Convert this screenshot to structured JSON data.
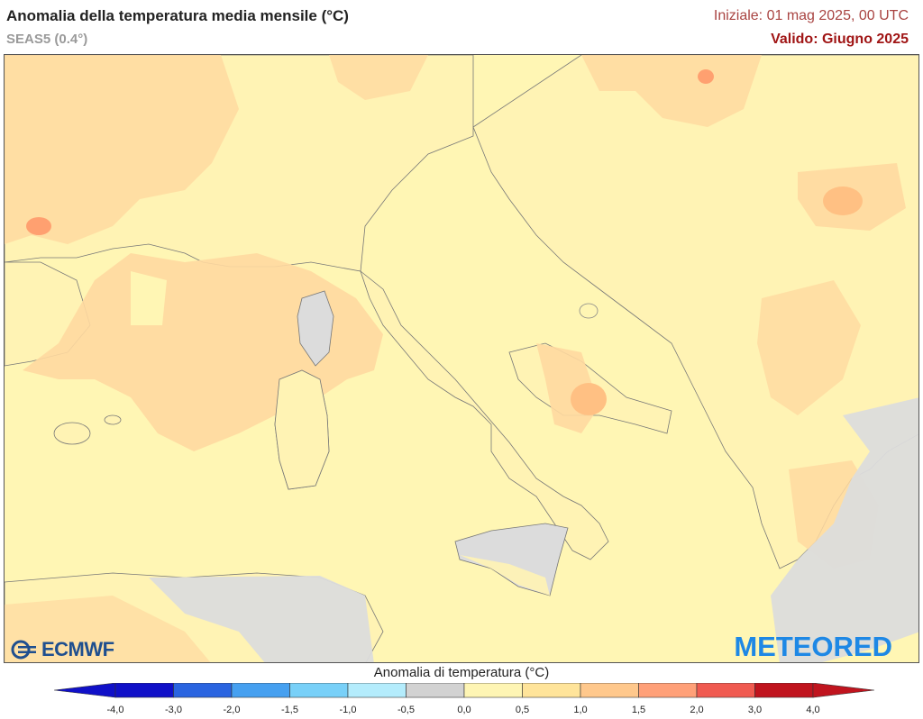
{
  "header": {
    "title": "Anomalia della temperatura media mensile (°C)",
    "model": "SEAS5 (0.4°)",
    "initial": "Iniziale: 01 mag 2025, 00 UTC",
    "valid": "Valido: Giugno 2025"
  },
  "logos": {
    "left": "ECMWF",
    "right": "METEORED"
  },
  "legend": {
    "title": "Anomalia di temperatura (°C)",
    "ticks": [
      "-4,0",
      "-3,0",
      "-2,0",
      "-1,5",
      "-1,0",
      "-0,5",
      "0,0",
      "0,5",
      "1,0",
      "1,5",
      "2,0",
      "3,0",
      "4,0"
    ],
    "colors": [
      "#1010c8",
      "#2a64e0",
      "#46a0f0",
      "#78d0f8",
      "#b4ecfc",
      "#d2d2d2",
      "#dedede",
      "#fef5b4",
      "#ffe49a",
      "#ffc88c",
      "#ffa078",
      "#f05a50",
      "#c0141e"
    ]
  },
  "colors": {
    "sea": "#fff6b4",
    "land_low": "#fff4ba",
    "warm1": "#ffd9a0",
    "warm2": "#ffc083",
    "warm3": "#ffa070",
    "neutral": "#dcdcdc",
    "border": "#666666"
  }
}
